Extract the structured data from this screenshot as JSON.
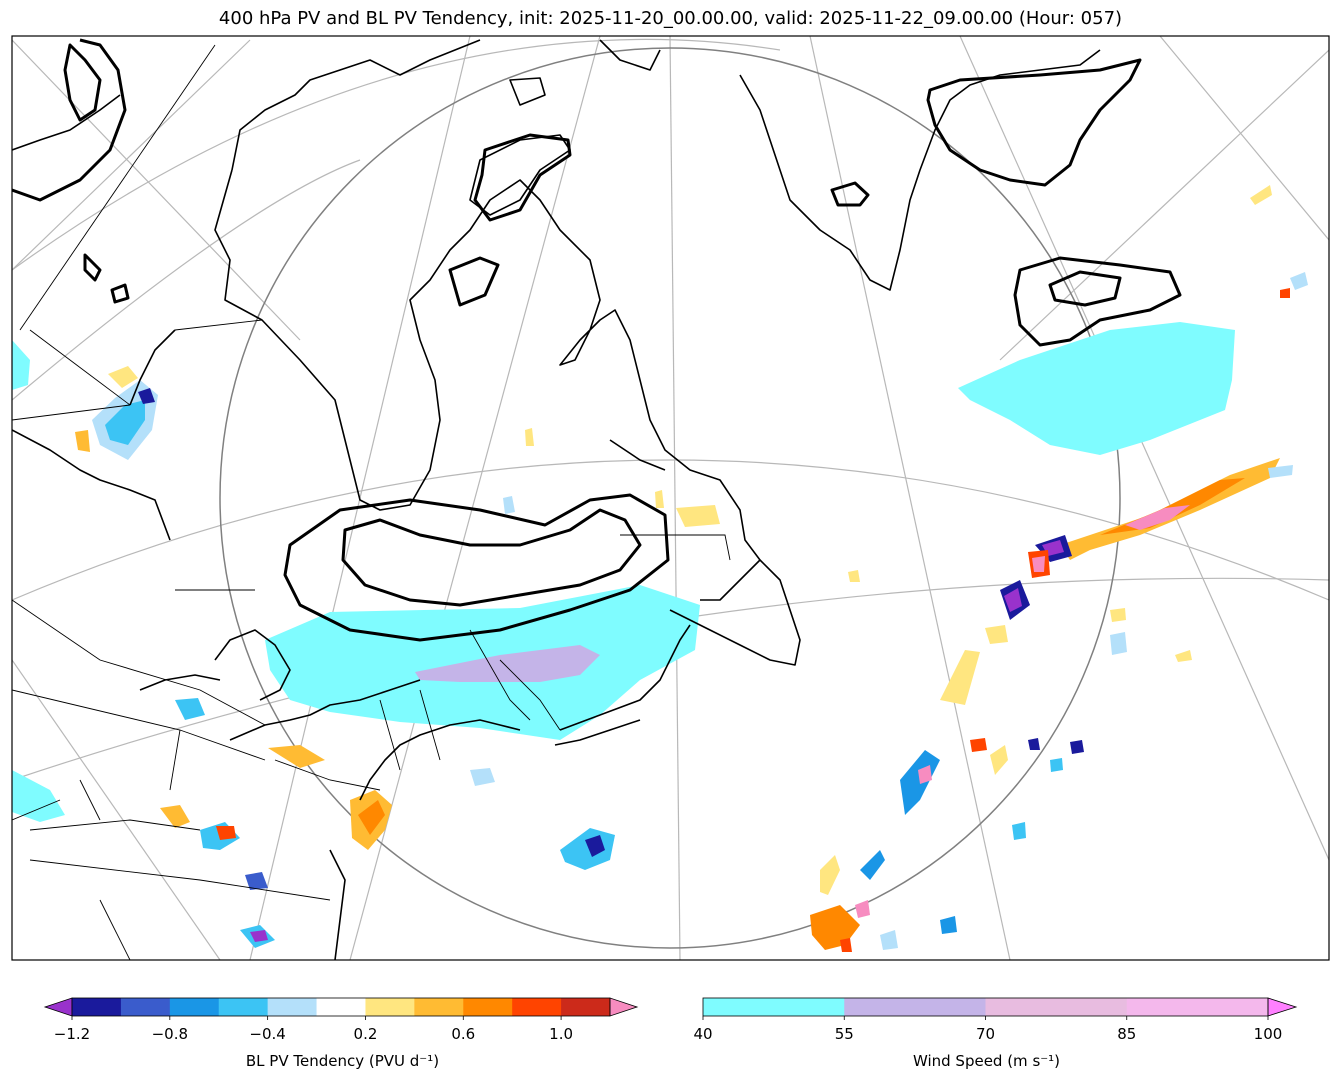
{
  "title": "400 hPa PV and BL PV Tendency, init: 2025-11-20_00.00.00, valid: 2025-11-22_09.00.00 (Hour: 057)",
  "colorbars": {
    "pv_tendency": {
      "label": "BL PV Tendency (PVU d⁻¹)",
      "ticks": [
        "−1.2",
        "−0.8",
        "−0.4",
        "0.2",
        "0.6",
        "1.0"
      ],
      "colors": [
        "#1a1a9c",
        "#3a5ccc",
        "#1a96e6",
        "#3cc4f4",
        "#b4e0fa",
        "#ffffff",
        "#ffe680",
        "#ffbb33",
        "#ff8800",
        "#ff4400",
        "#cc2a1a"
      ],
      "under_color": "#9932cc",
      "over_color": "#f78cc0"
    },
    "wind_speed": {
      "label": "Wind Speed (m s⁻¹)",
      "ticks": [
        "40",
        "55",
        "70",
        "85",
        "100"
      ],
      "colors": [
        "#7ffcff",
        "#c4b4e8",
        "#e8bce0",
        "#f4b8ec"
      ],
      "over_color": "#ff80ff"
    }
  },
  "legend_colors": {
    "coast": "#000000",
    "pv_contour": "#000000",
    "graticule": "#b0b0b0",
    "circle": "#808080"
  }
}
